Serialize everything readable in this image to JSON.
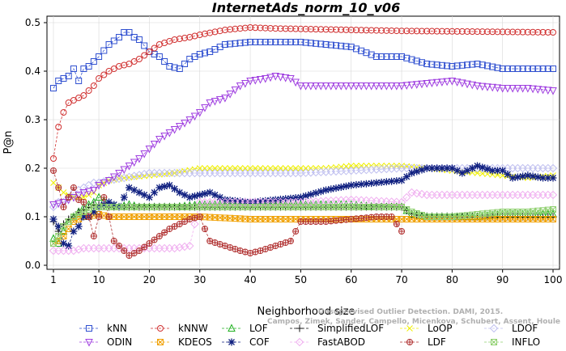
{
  "chart_data": {
    "type": "line",
    "title": "InternetAds_norm_10_v06",
    "xlabel": "Neighborhood size",
    "ylabel": "P@n",
    "xlim": [
      1,
      100
    ],
    "ylim": [
      0,
      0.5
    ],
    "xticks": [
      1,
      10,
      20,
      30,
      40,
      50,
      60,
      70,
      80,
      90,
      100
    ],
    "yticks": [
      0.0,
      0.1,
      0.2,
      0.3,
      0.4,
      0.5
    ],
    "watermark": [
      "Campos, Zimek, Sander, Campello, Micenkova, Schubert, Assent, Houle",
      "Unsupervised Outlier Detection. DAMI, 2015."
    ],
    "legend_position": "bottom",
    "series": [
      {
        "name": "kNN",
        "color": "#3050d0",
        "marker": "square",
        "x": [
          1,
          2,
          3,
          4,
          5,
          6,
          7,
          8,
          9,
          10,
          12,
          14,
          15,
          16,
          17,
          18,
          20,
          22,
          24,
          26,
          28,
          30,
          32,
          35,
          40,
          45,
          50,
          55,
          60,
          65,
          70,
          75,
          80,
          85,
          90,
          95,
          100
        ],
        "y": [
          0.365,
          0.38,
          0.385,
          0.39,
          0.405,
          0.38,
          0.405,
          0.41,
          0.42,
          0.43,
          0.455,
          0.47,
          0.48,
          0.48,
          0.47,
          0.465,
          0.44,
          0.43,
          0.41,
          0.405,
          0.425,
          0.435,
          0.44,
          0.455,
          0.46,
          0.46,
          0.46,
          0.455,
          0.45,
          0.43,
          0.43,
          0.415,
          0.41,
          0.415,
          0.405,
          0.405,
          0.405
        ]
      },
      {
        "name": "kNNW",
        "color": "#d03030",
        "marker": "circle",
        "x": [
          1,
          2,
          3,
          4,
          5,
          6,
          7,
          8,
          9,
          10,
          12,
          14,
          16,
          18,
          20,
          22,
          25,
          28,
          30,
          35,
          40,
          45,
          50,
          55,
          60,
          70,
          80,
          90,
          100
        ],
        "y": [
          0.22,
          0.285,
          0.315,
          0.335,
          0.34,
          0.345,
          0.35,
          0.36,
          0.37,
          0.385,
          0.4,
          0.41,
          0.415,
          0.425,
          0.44,
          0.455,
          0.465,
          0.47,
          0.475,
          0.485,
          0.49,
          0.488,
          0.487,
          0.486,
          0.485,
          0.483,
          0.482,
          0.481,
          0.48
        ]
      },
      {
        "name": "LOF",
        "color": "#20b020",
        "marker": "triangle",
        "x": [
          1,
          2,
          3,
          4,
          5,
          6,
          7,
          8,
          9,
          10,
          12,
          14,
          16,
          18,
          20,
          25,
          30,
          40,
          50,
          60,
          65,
          70,
          72,
          75,
          80,
          85,
          90,
          95,
          100
        ],
        "y": [
          0.055,
          0.045,
          0.07,
          0.09,
          0.1,
          0.11,
          0.12,
          0.125,
          0.13,
          0.14,
          0.125,
          0.12,
          0.125,
          0.12,
          0.12,
          0.12,
          0.125,
          0.125,
          0.125,
          0.125,
          0.12,
          0.12,
          0.105,
          0.1,
          0.1,
          0.1,
          0.105,
          0.105,
          0.105
        ]
      },
      {
        "name": "SimplifiedLOF",
        "color": "#101010",
        "marker": "plus",
        "x": [
          1,
          2,
          3,
          4,
          5,
          6,
          7,
          8,
          9,
          10,
          12,
          14,
          16,
          18,
          20,
          25,
          30,
          40,
          50,
          60,
          65,
          70,
          72,
          75,
          80,
          85,
          90,
          95,
          100
        ],
        "y": [
          0.09,
          0.07,
          0.085,
          0.095,
          0.1,
          0.11,
          0.115,
          0.12,
          0.125,
          0.125,
          0.12,
          0.12,
          0.12,
          0.12,
          0.12,
          0.12,
          0.12,
          0.12,
          0.12,
          0.12,
          0.12,
          0.12,
          0.105,
          0.1,
          0.1,
          0.1,
          0.1,
          0.1,
          0.1
        ]
      },
      {
        "name": "LoOP",
        "color": "#f0f000",
        "marker": "x",
        "x": [
          1,
          2,
          3,
          5,
          7,
          9,
          10,
          12,
          15,
          20,
          25,
          30,
          35,
          40,
          45,
          50,
          55,
          60,
          65,
          70,
          75,
          80,
          85,
          90,
          95,
          100
        ],
        "y": [
          0.17,
          0.16,
          0.15,
          0.14,
          0.14,
          0.15,
          0.165,
          0.175,
          0.18,
          0.185,
          0.19,
          0.2,
          0.2,
          0.2,
          0.2,
          0.2,
          0.2,
          0.205,
          0.205,
          0.205,
          0.2,
          0.195,
          0.19,
          0.185,
          0.18,
          0.185
        ]
      },
      {
        "name": "LDOF",
        "color": "#c0c0f0",
        "marker": "diamond",
        "x": [
          1,
          2,
          3,
          5,
          7,
          9,
          10,
          12,
          15,
          20,
          25,
          30,
          40,
          50,
          60,
          70,
          75,
          80,
          85,
          90,
          95,
          100
        ],
        "y": [
          0.12,
          0.13,
          0.13,
          0.15,
          0.16,
          0.17,
          0.17,
          0.175,
          0.18,
          0.19,
          0.19,
          0.19,
          0.19,
          0.19,
          0.195,
          0.2,
          0.2,
          0.2,
          0.2,
          0.2,
          0.2,
          0.2
        ]
      },
      {
        "name": "ODIN",
        "color": "#a040e0",
        "marker": "triangle-down",
        "x": [
          1,
          3,
          5,
          7,
          9,
          10,
          12,
          14,
          16,
          18,
          20,
          22,
          25,
          28,
          30,
          32,
          35,
          38,
          40,
          43,
          45,
          48,
          50,
          55,
          60,
          65,
          70,
          75,
          80,
          85,
          90,
          95,
          100
        ],
        "y": [
          0.125,
          0.13,
          0.14,
          0.15,
          0.155,
          0.165,
          0.175,
          0.19,
          0.205,
          0.22,
          0.24,
          0.26,
          0.28,
          0.3,
          0.315,
          0.335,
          0.345,
          0.37,
          0.38,
          0.385,
          0.39,
          0.385,
          0.37,
          0.37,
          0.37,
          0.37,
          0.37,
          0.375,
          0.38,
          0.37,
          0.365,
          0.365,
          0.36
        ]
      },
      {
        "name": "KDEOS",
        "color": "#f0a000",
        "marker": "square-x",
        "x": [
          1,
          2,
          3,
          5,
          7,
          8,
          10,
          12,
          15,
          20,
          25,
          30,
          40,
          50,
          60,
          70,
          75,
          80,
          90,
          100
        ],
        "y": [
          0.045,
          0.05,
          0.06,
          0.09,
          0.1,
          0.1,
          0.105,
          0.1,
          0.1,
          0.1,
          0.1,
          0.1,
          0.095,
          0.095,
          0.095,
          0.095,
          0.095,
          0.095,
          0.095,
          0.095
        ]
      },
      {
        "name": "COF",
        "color": "#102080",
        "marker": "star",
        "x": [
          1,
          2,
          3,
          4,
          5,
          6,
          7,
          8,
          9,
          10,
          12,
          14,
          16,
          18,
          20,
          22,
          24,
          26,
          28,
          30,
          32,
          35,
          40,
          45,
          50,
          55,
          60,
          65,
          70,
          72,
          75,
          78,
          80,
          82,
          85,
          88,
          90,
          92,
          95,
          98,
          100
        ],
        "y": [
          0.095,
          0.08,
          0.045,
          0.04,
          0.07,
          0.08,
          0.1,
          0.1,
          0.11,
          0.12,
          0.13,
          0.12,
          0.16,
          0.15,
          0.14,
          0.16,
          0.165,
          0.15,
          0.14,
          0.145,
          0.15,
          0.135,
          0.13,
          0.135,
          0.14,
          0.155,
          0.165,
          0.17,
          0.175,
          0.19,
          0.2,
          0.2,
          0.2,
          0.19,
          0.205,
          0.195,
          0.195,
          0.18,
          0.185,
          0.18,
          0.18
        ]
      },
      {
        "name": "FastABOD",
        "color": "#f0b0f0",
        "marker": "diamond",
        "x": [
          1,
          3,
          5,
          7,
          9,
          10,
          12,
          15,
          20,
          25,
          28,
          30,
          32,
          35,
          40,
          50,
          60,
          70,
          72,
          75,
          80,
          85,
          90,
          95,
          100
        ],
        "y": [
          0.03,
          0.03,
          0.03,
          0.035,
          0.035,
          0.035,
          0.035,
          0.035,
          0.035,
          0.035,
          0.04,
          0.13,
          0.13,
          0.13,
          0.13,
          0.13,
          0.135,
          0.13,
          0.15,
          0.145,
          0.145,
          0.145,
          0.145,
          0.145,
          0.145
        ]
      },
      {
        "name": "LDF",
        "color": "#b03030",
        "marker": "circle-plus",
        "x": [
          1,
          2,
          3,
          4,
          5,
          6,
          7,
          8,
          9,
          10,
          11,
          12,
          13,
          14,
          15,
          16,
          18,
          20,
          22,
          24,
          26,
          28,
          30,
          32,
          35,
          38,
          40,
          42,
          45,
          48,
          50,
          55,
          60,
          65,
          68,
          70
        ],
        "y": [
          0.195,
          0.16,
          0.12,
          0.14,
          0.16,
          0.135,
          0.13,
          0.1,
          0.06,
          0.1,
          0.14,
          0.1,
          0.05,
          0.04,
          0.03,
          0.02,
          0.03,
          0.045,
          0.06,
          0.075,
          0.085,
          0.095,
          0.1,
          0.05,
          0.04,
          0.03,
          0.025,
          0.03,
          0.04,
          0.05,
          0.09,
          0.09,
          0.095,
          0.1,
          0.1,
          0.07
        ]
      },
      {
        "name": "INFLO",
        "color": "#90d070",
        "marker": "square-x",
        "x": [
          1,
          2,
          3,
          4,
          5,
          6,
          7,
          8,
          9,
          10,
          12,
          15,
          20,
          25,
          30,
          40,
          50,
          60,
          70,
          72,
          75,
          80,
          85,
          90,
          95,
          100
        ],
        "y": [
          0.045,
          0.06,
          0.08,
          0.09,
          0.1,
          0.105,
          0.11,
          0.115,
          0.12,
          0.12,
          0.12,
          0.12,
          0.12,
          0.12,
          0.12,
          0.12,
          0.12,
          0.12,
          0.12,
          0.11,
          0.1,
          0.1,
          0.105,
          0.11,
          0.11,
          0.115
        ]
      }
    ]
  }
}
